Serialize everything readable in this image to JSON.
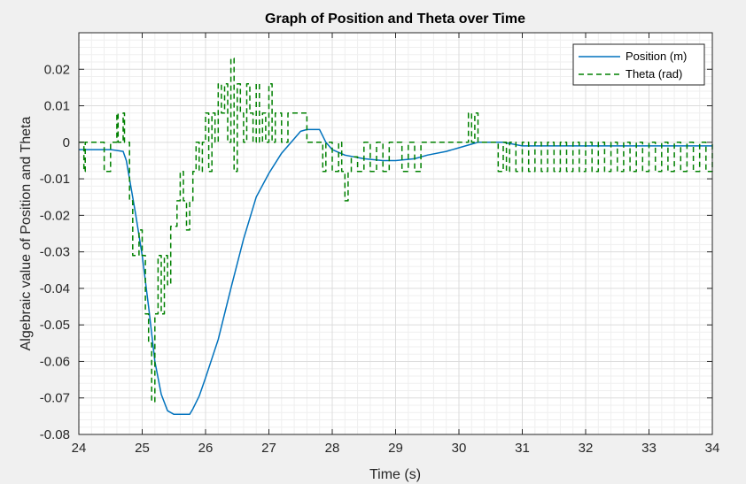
{
  "chart_data": {
    "type": "line",
    "title": "Graph of Position and Theta over Time",
    "xlabel": "Time (s)",
    "ylabel": "Algebraic value of Position and Theta",
    "xlim": [
      24,
      34
    ],
    "ylim": [
      -0.08,
      0.03
    ],
    "xticks": [
      24,
      25,
      26,
      27,
      28,
      29,
      30,
      31,
      32,
      33,
      34
    ],
    "xtick_labels": [
      "24",
      "25",
      "26",
      "27",
      "28",
      "29",
      "30",
      "31",
      "32",
      "33",
      "34"
    ],
    "yticks": [
      -0.08,
      -0.07,
      -0.06,
      -0.05,
      -0.04,
      -0.03,
      -0.02,
      -0.01,
      0,
      0.01,
      0.02
    ],
    "ytick_labels": [
      "-0.08",
      "-0.07",
      "-0.06",
      "-0.05",
      "-0.04",
      "-0.03",
      "-0.02",
      "-0.01",
      "0",
      "0.01",
      "0.02"
    ],
    "grid": true,
    "minor_grid": true,
    "legend_position": "top-right",
    "series": [
      {
        "name": "Position (m)",
        "color": "#0072bd",
        "style": "solid",
        "x": [
          24,
          24.5,
          24.7,
          24.75,
          24.8,
          24.9,
          25.0,
          25.1,
          25.2,
          25.3,
          25.4,
          25.5,
          25.6,
          25.7,
          25.75,
          25.8,
          25.9,
          26.0,
          26.2,
          26.4,
          26.6,
          26.8,
          27.0,
          27.2,
          27.4,
          27.5,
          27.6,
          27.8,
          27.9,
          28.0,
          28.2,
          28.5,
          28.8,
          29.0,
          29.3,
          29.5,
          29.8,
          30.0,
          30.2,
          30.3,
          30.5,
          30.7,
          31.0,
          32.0,
          33.0,
          34.0
        ],
        "y": [
          -0.002,
          -0.002,
          -0.0025,
          -0.005,
          -0.01,
          -0.02,
          -0.031,
          -0.045,
          -0.06,
          -0.069,
          -0.0735,
          -0.0745,
          -0.0745,
          -0.0745,
          -0.0745,
          -0.073,
          -0.0695,
          -0.0645,
          -0.054,
          -0.04,
          -0.0265,
          -0.015,
          -0.0085,
          -0.003,
          0.001,
          0.003,
          0.0035,
          0.0035,
          0.0,
          -0.002,
          -0.0035,
          -0.0045,
          -0.005,
          -0.005,
          -0.0045,
          -0.0035,
          -0.0025,
          -0.0015,
          -0.0005,
          0.0,
          0.0,
          0.0,
          -0.001,
          -0.001,
          -0.001,
          -0.001
        ]
      },
      {
        "name": "Theta (rad)",
        "color": "#008000",
        "style": "dashed",
        "x": [
          24,
          24.08,
          24.1,
          24.3,
          24.4,
          24.5,
          24.6,
          24.62,
          24.7,
          24.72,
          24.8,
          24.85,
          24.9,
          24.95,
          25.0,
          25.05,
          25.1,
          25.15,
          25.2,
          25.25,
          25.3,
          25.35,
          25.4,
          25.45,
          25.5,
          25.55,
          25.6,
          25.65,
          25.7,
          25.75,
          25.8,
          25.85,
          25.9,
          25.95,
          26.0,
          26.05,
          26.1,
          26.15,
          26.2,
          26.25,
          26.3,
          26.35,
          26.4,
          26.45,
          26.5,
          26.55,
          26.6,
          26.65,
          26.7,
          26.75,
          26.8,
          26.85,
          26.9,
          26.95,
          27.0,
          27.05,
          27.1,
          27.2,
          27.3,
          27.4,
          27.5,
          27.6,
          27.7,
          27.8,
          27.85,
          27.9,
          28.0,
          28.1,
          28.15,
          28.2,
          28.25,
          28.3,
          28.4,
          28.5,
          28.6,
          28.7,
          28.8,
          28.9,
          29.0,
          29.1,
          29.2,
          29.3,
          29.4,
          29.5,
          30.0,
          30.1,
          30.15,
          30.2,
          30.25,
          30.3,
          30.6,
          30.62,
          30.7,
          30.75,
          30.8,
          30.9,
          31.0,
          31.1,
          31.2,
          31.3,
          31.4,
          31.5,
          31.6,
          31.7,
          31.8,
          31.9,
          32.0,
          32.1,
          32.2,
          32.3,
          32.4,
          32.5,
          32.6,
          32.7,
          32.8,
          32.9,
          33.0,
          33.1,
          33.2,
          33.3,
          33.4,
          33.5,
          33.6,
          33.7,
          33.8,
          33.9,
          34.0
        ],
        "y": [
          0,
          -0.008,
          0,
          0,
          -0.008,
          0,
          0.008,
          0,
          0.008,
          0,
          -0.016,
          -0.031,
          -0.031,
          -0.024,
          -0.031,
          -0.047,
          -0.055,
          -0.071,
          -0.047,
          -0.031,
          -0.047,
          -0.031,
          -0.039,
          -0.023,
          -0.023,
          -0.016,
          -0.008,
          -0.016,
          -0.024,
          -0.016,
          -0.008,
          0,
          -0.008,
          0,
          0.008,
          -0.008,
          0.008,
          0,
          0.016,
          0.008,
          0.016,
          0,
          0.023,
          -0.008,
          0.016,
          0.008,
          0,
          0.016,
          0.008,
          0,
          0.016,
          0,
          0.008,
          0,
          0.016,
          0,
          0.008,
          0,
          0.008,
          0.008,
          0.008,
          0,
          0,
          0,
          -0.008,
          0,
          -0.008,
          0,
          -0.008,
          -0.016,
          -0.008,
          -0.004,
          -0.008,
          0,
          -0.008,
          0,
          -0.008,
          0,
          0,
          -0.008,
          0,
          -0.008,
          0,
          0,
          0,
          0,
          0.008,
          0,
          0.008,
          0,
          0,
          -0.008,
          0,
          -0.008,
          0,
          -0.008,
          0,
          -0.008,
          0,
          -0.008,
          0,
          -0.008,
          0,
          -0.008,
          0,
          -0.008,
          0,
          -0.008,
          0,
          -0.008,
          0,
          -0.008,
          0,
          -0.008,
          0,
          -0.008,
          0,
          -0.008,
          0,
          -0.008,
          0,
          -0.008,
          0,
          -0.008,
          0,
          -0.008,
          0
        ]
      }
    ]
  }
}
